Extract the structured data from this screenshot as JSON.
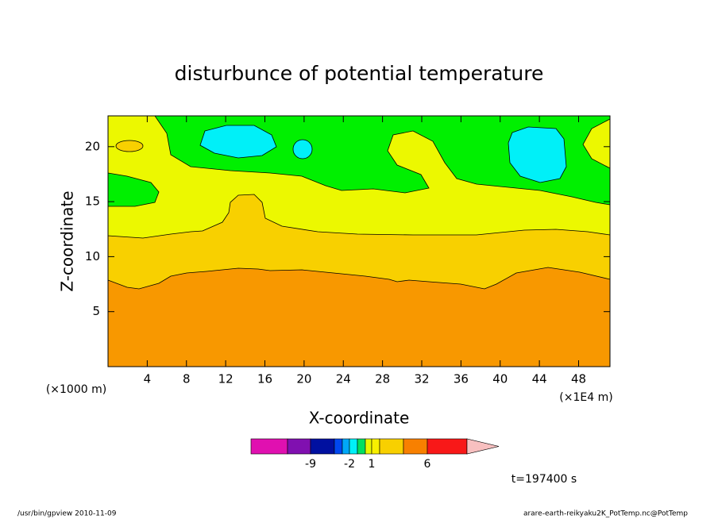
{
  "chart_data": {
    "type": "contour",
    "title": "disturbunce of potential temperature",
    "x_label": "X-coordinate",
    "y_label": "Z-coordinate",
    "x_unit_left": "(×1000 m)",
    "x_unit_right": "(×1E4 m)",
    "xlim": [
      0,
      51.2
    ],
    "xticks": [
      4,
      8,
      12,
      16,
      20,
      24,
      28,
      32,
      36,
      40,
      44,
      48
    ],
    "ylim": [
      0,
      22.8
    ],
    "yticks": [
      5,
      10,
      15,
      20
    ],
    "fill_colors": {
      "orange": "#f89800",
      "gold": "#f8d000",
      "yellow": "#ecf800",
      "green": "#00f000",
      "cyan": "#00f0f8"
    },
    "colorbar": {
      "colors": [
        "#e010b0",
        "#8010b0",
        "#0010a0",
        "#0048f0",
        "#00a8f8",
        "#00f0f8",
        "#00e060",
        "#e8f800",
        "#f8f000",
        "#f8d000",
        "#f88000",
        "#f81818",
        "#f88080",
        "#f8c0c0"
      ],
      "levels": [
        -15,
        -9,
        -6,
        -3,
        -2,
        -1,
        0,
        1,
        2,
        3,
        6,
        9,
        15
      ],
      "ticks": [
        -9,
        -2,
        1,
        6
      ]
    },
    "time_label": "t=197400 s",
    "footer_left": "/usr/bin/gpview   2010-11-09",
    "footer_right": "arare-earth-reikyaku2K_PotTemp.nc@PotTemp"
  }
}
